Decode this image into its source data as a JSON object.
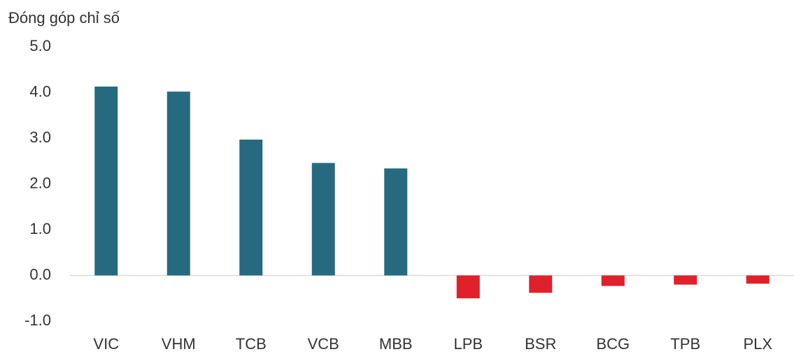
{
  "chart_data": {
    "type": "bar",
    "y_label": "Đóng góp chỉ số",
    "categories": [
      "VIC",
      "VHM",
      "TCB",
      "VCB",
      "MBB",
      "LPB",
      "BSR",
      "BCG",
      "TPB",
      "PLX"
    ],
    "values": [
      4.13,
      4.02,
      2.97,
      2.46,
      2.34,
      -0.5,
      -0.38,
      -0.23,
      -0.2,
      -0.18
    ],
    "colors": [
      "#266a80",
      "#266a80",
      "#266a80",
      "#266a80",
      "#266a80",
      "#e0202a",
      "#e0202a",
      "#e0202a",
      "#e0202a",
      "#e0202a"
    ],
    "ylim": [
      -1,
      5
    ],
    "yticks": [
      {
        "value": -1,
        "label": "-1.0"
      },
      {
        "value": 0,
        "label": "0.0"
      },
      {
        "value": 1,
        "label": "1.0"
      },
      {
        "value": 2,
        "label": "2.0"
      },
      {
        "value": 3,
        "label": "3.0"
      },
      {
        "value": 4,
        "label": "4.0"
      },
      {
        "value": 5,
        "label": "5.0"
      }
    ],
    "grid": false
  }
}
